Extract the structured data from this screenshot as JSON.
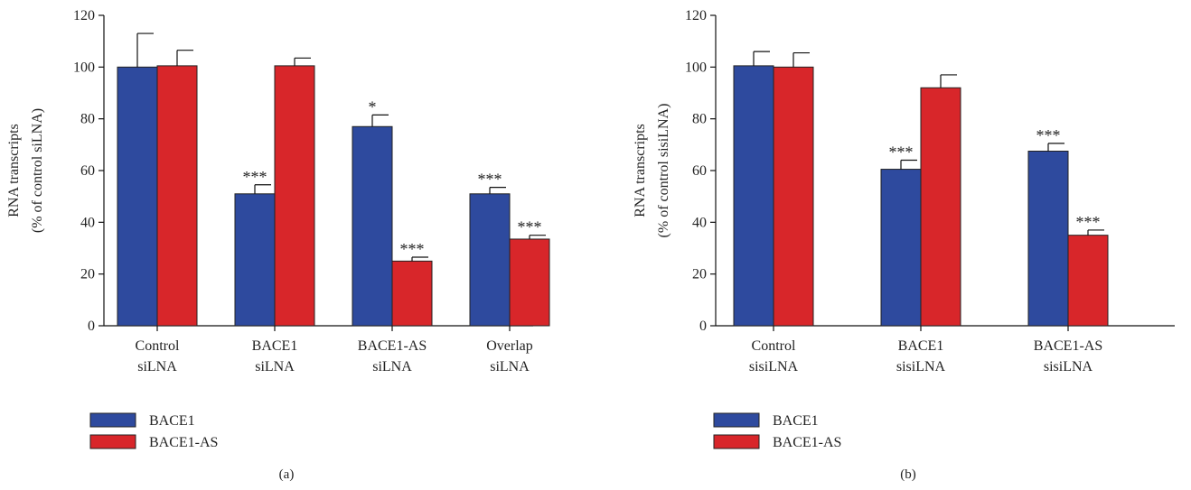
{
  "chart_data": [
    {
      "type": "bar",
      "panel_label": "(a)",
      "ylabel": [
        "RNA transcripts",
        "(% of control siLNA)"
      ],
      "ylim": [
        0,
        120
      ],
      "yticks": [
        0,
        20,
        40,
        60,
        80,
        100,
        120
      ],
      "categories": [
        [
          "Control",
          "siLNA"
        ],
        [
          "BACE1",
          "siLNA"
        ],
        [
          "BACE1-AS",
          "siLNA"
        ],
        [
          "Overlap",
          "siLNA"
        ]
      ],
      "series": [
        {
          "name": "BACE1",
          "color": "#2e4a9e",
          "values": [
            100,
            51,
            77,
            51
          ],
          "errors": [
            13,
            3.5,
            4.5,
            2.5
          ],
          "significance": [
            "",
            "***",
            "*",
            "***"
          ]
        },
        {
          "name": "BACE1-AS",
          "color": "#d8262a",
          "values": [
            100.5,
            100.5,
            25,
            33.5
          ],
          "errors": [
            6,
            3,
            1.5,
            1.5
          ],
          "significance": [
            "",
            "",
            "***",
            "***"
          ]
        }
      ],
      "legend": [
        "BACE1",
        "BACE1-AS"
      ],
      "legend_position": "bottom-left"
    },
    {
      "type": "bar",
      "panel_label": "(b)",
      "ylabel": [
        "RNA transcripts",
        "(% of control sisiLNA)"
      ],
      "ylim": [
        0,
        120
      ],
      "yticks": [
        0,
        20,
        40,
        60,
        80,
        100,
        120
      ],
      "categories": [
        [
          "Control",
          "sisiLNA"
        ],
        [
          "BACE1",
          "sisiLNA"
        ],
        [
          "BACE1-AS",
          "sisiLNA"
        ]
      ],
      "series": [
        {
          "name": "BACE1",
          "color": "#2e4a9e",
          "values": [
            100.5,
            60.5,
            67.5
          ],
          "errors": [
            5.5,
            3.5,
            3
          ],
          "significance": [
            "",
            "***",
            "***"
          ]
        },
        {
          "name": "BACE1-AS",
          "color": "#d8262a",
          "values": [
            100,
            92,
            35
          ],
          "errors": [
            5.5,
            5,
            2
          ],
          "significance": [
            "",
            "",
            "***"
          ]
        }
      ],
      "legend": [
        "BACE1",
        "BACE1-AS"
      ],
      "legend_position": "bottom-left"
    }
  ]
}
